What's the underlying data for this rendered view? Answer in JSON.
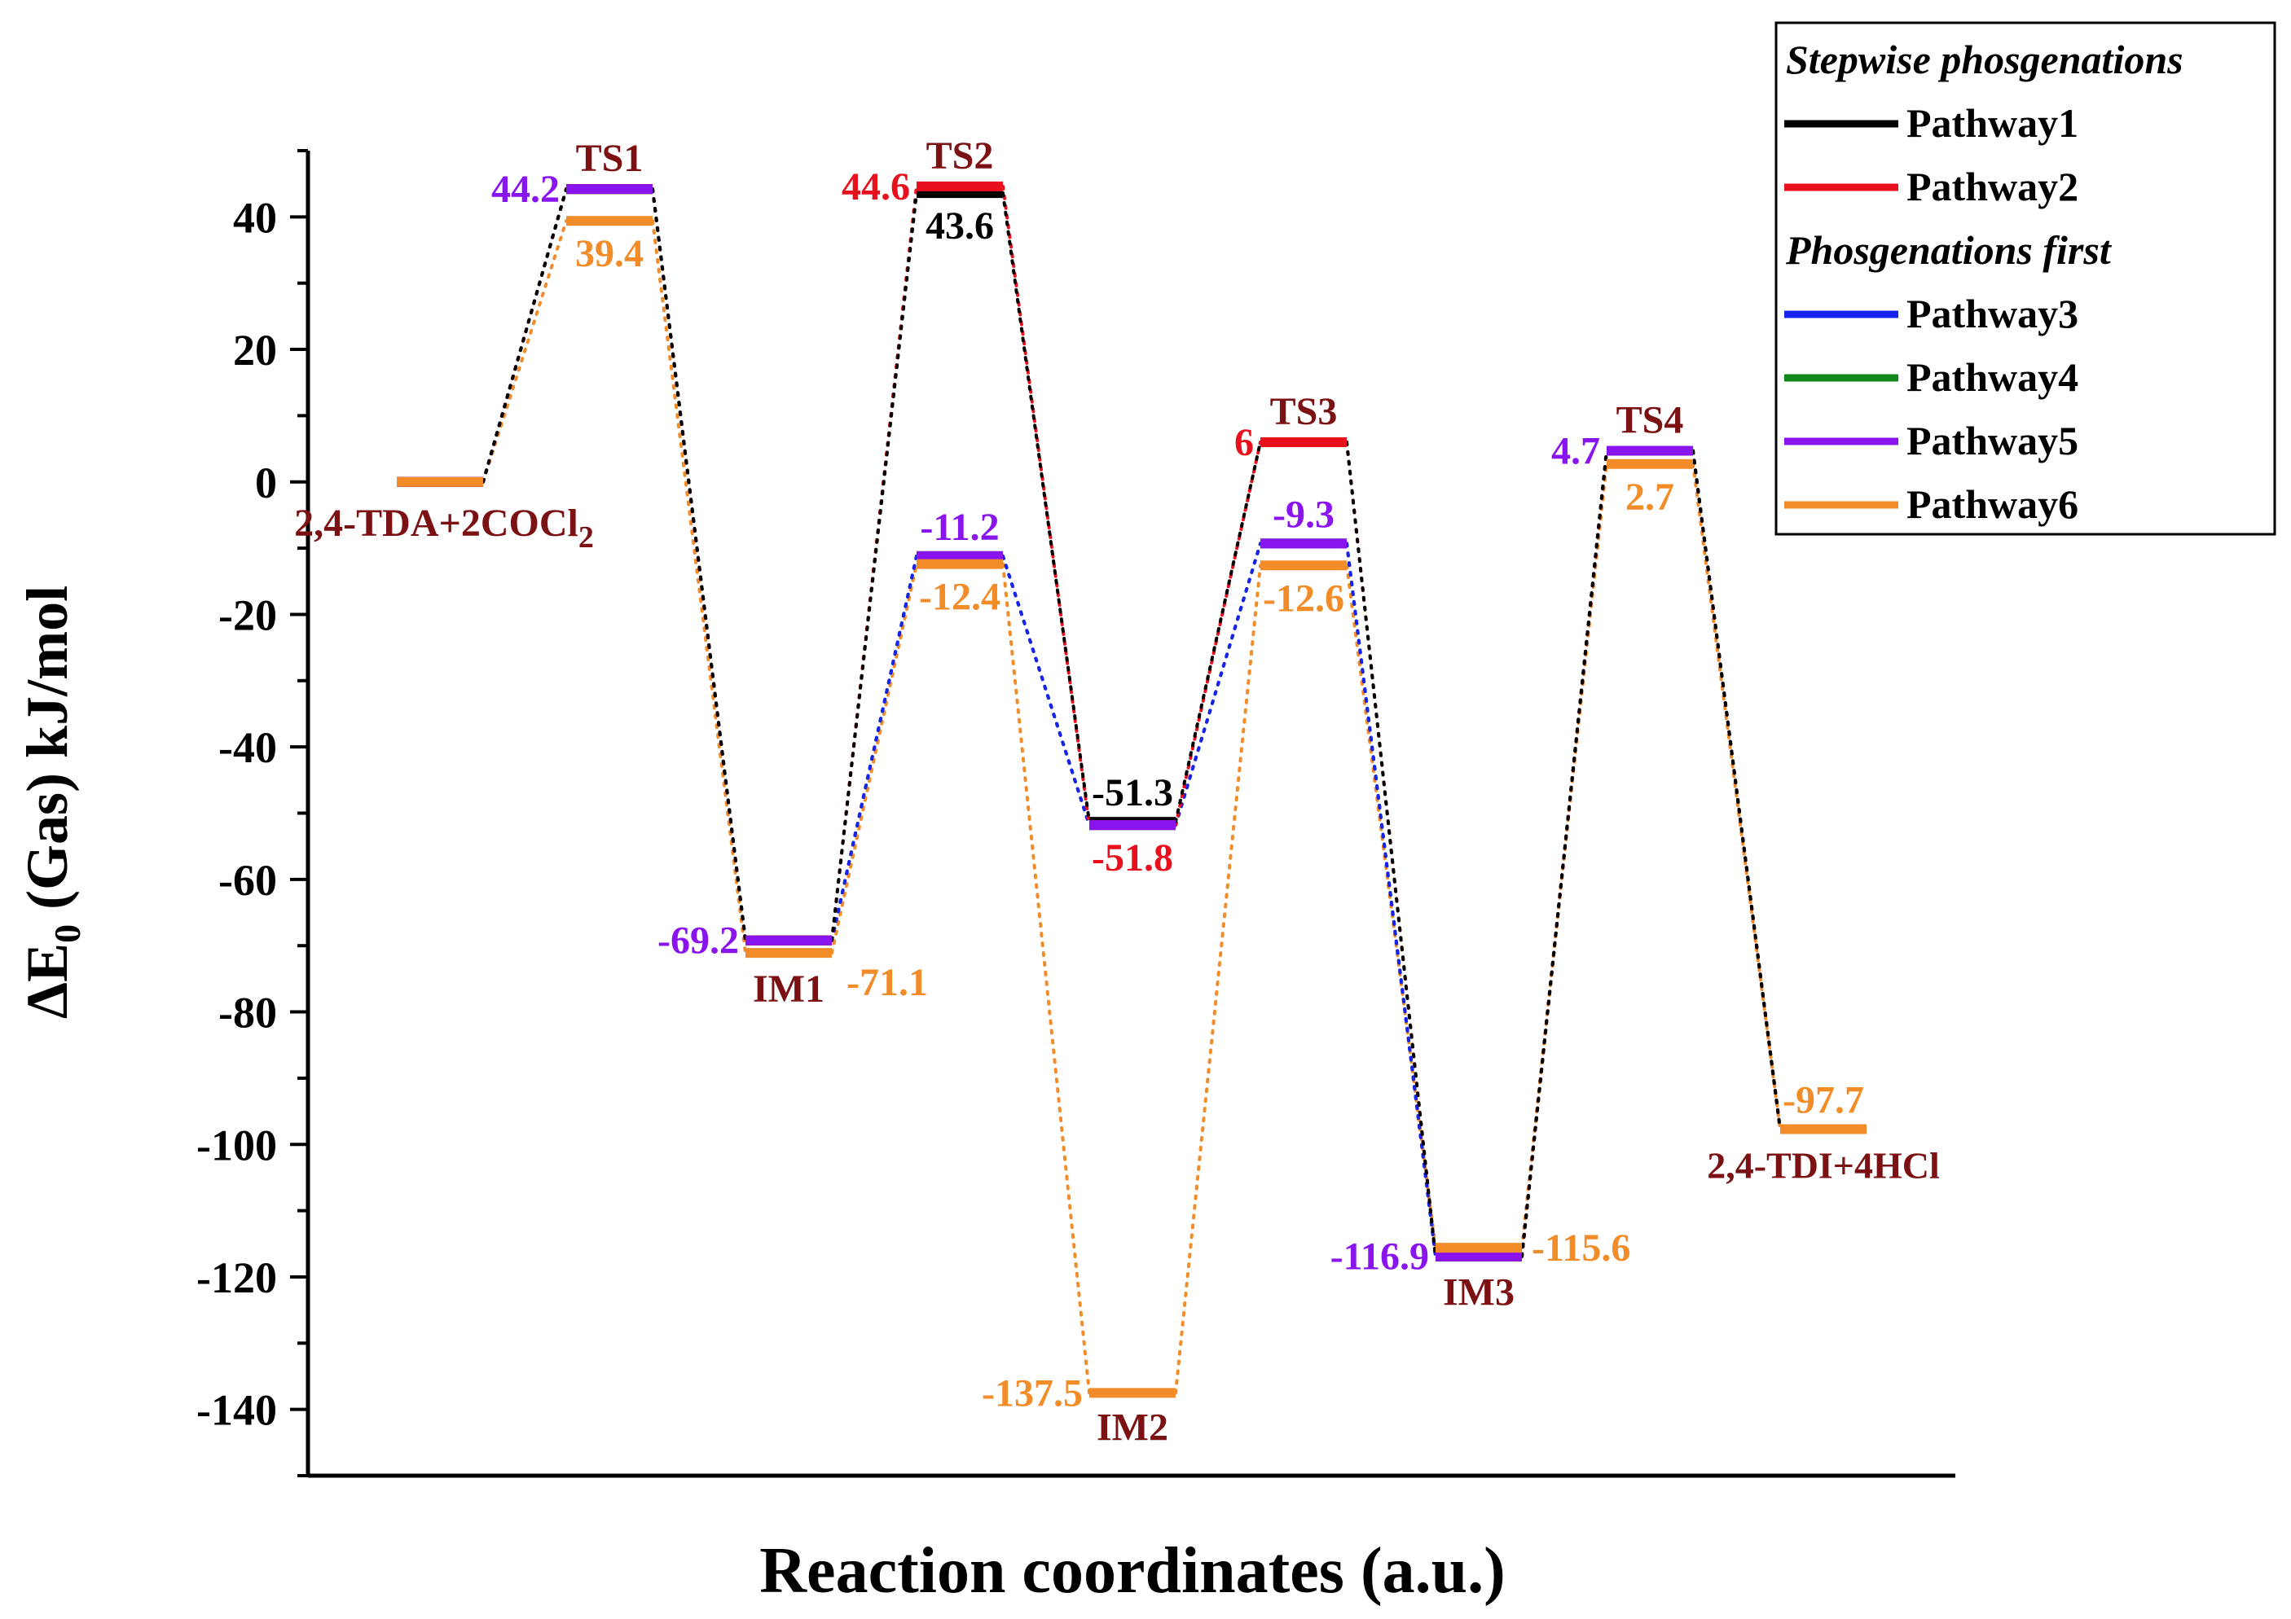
{
  "chart_data": {
    "type": "energy-profile",
    "xlabel": "Reaction coordinates (a.u.)",
    "ylabel_parts": {
      "delta": "ΔE",
      "sub": "0",
      "rest": " (Gas) kJ/mol"
    },
    "ylim": [
      -150,
      50
    ],
    "yticks": [
      40,
      20,
      0,
      -20,
      -40,
      -60,
      -80,
      -100,
      -120,
      -140
    ],
    "stages": [
      "2,4-TDA+2COCl2",
      "TS1",
      "IM1",
      "TS2",
      "IM2",
      "TS3",
      "IM3",
      "TS4",
      "2,4-TDI+4HCl"
    ],
    "stage_labels": {
      "reactant": {
        "text": "2,4-TDA+2COCl",
        "sub": "2"
      },
      "TS1": "TS1",
      "IM1": "IM1",
      "TS2": "TS2",
      "IM2": "IM2",
      "TS3": "TS3",
      "IM3": "IM3",
      "TS4": "TS4",
      "product": "2,4-TDI+4HCl"
    },
    "series": [
      {
        "name": "Pathway1",
        "color": "#000000",
        "values": [
          0,
          44.2,
          -69.2,
          43.6,
          -51.3,
          6,
          -116.9,
          4.7,
          -97.7
        ]
      },
      {
        "name": "Pathway2",
        "color": "#e8101c",
        "values": [
          0,
          44.2,
          -69.2,
          44.6,
          -51.8,
          6,
          -116.9,
          4.7,
          -97.7
        ]
      },
      {
        "name": "Pathway3",
        "color": "#1622ee",
        "values": [
          0,
          44.2,
          -69.2,
          -11.2,
          -51.8,
          -9.3,
          -116.9,
          4.7,
          -97.7
        ]
      },
      {
        "name": "Pathway4",
        "color": "#138a1b",
        "values": [
          0,
          44.2,
          -69.2,
          -11.2,
          -51.8,
          -9.3,
          -116.9,
          4.7,
          -97.7
        ]
      },
      {
        "name": "Pathway5",
        "color": "#8a14ee",
        "values": [
          0,
          44.2,
          -69.2,
          -11.2,
          -51.8,
          -9.3,
          -116.9,
          4.7,
          -97.7
        ]
      },
      {
        "name": "Pathway6",
        "color": "#f28c28",
        "values": [
          0,
          39.4,
          -71.1,
          -12.4,
          -137.5,
          -12.6,
          -115.6,
          2.7,
          -97.7
        ]
      }
    ],
    "data_labels": [
      {
        "text": "44.2",
        "stage": 1,
        "value": 44.2,
        "color": "#8a14ee",
        "side": "left"
      },
      {
        "text": "39.4",
        "stage": 1,
        "value": 39.4,
        "color": "#f28c28",
        "side": "below"
      },
      {
        "text": "-69.2",
        "stage": 2,
        "value": -69.2,
        "color": "#8a14ee",
        "side": "left"
      },
      {
        "text": "-71.1",
        "stage": 2,
        "value": -71.1,
        "color": "#f28c28",
        "side": "right-below"
      },
      {
        "text": "44.6",
        "stage": 3,
        "value": 44.6,
        "color": "#e8101c",
        "side": "left"
      },
      {
        "text": "43.6",
        "stage": 3,
        "value": 43.6,
        "color": "#000000",
        "side": "below"
      },
      {
        "text": "-11.2",
        "stage": 3,
        "value": -11.2,
        "color": "#8a14ee",
        "side": "above"
      },
      {
        "text": "-12.4",
        "stage": 3,
        "value": -12.4,
        "color": "#f28c28",
        "side": "below"
      },
      {
        "text": "-51.3",
        "stage": 4,
        "value": -51.3,
        "color": "#000000",
        "side": "above"
      },
      {
        "text": "-51.8",
        "stage": 4,
        "value": -51.8,
        "color": "#e8101c",
        "side": "below"
      },
      {
        "text": "-137.5",
        "stage": 4,
        "value": -137.5,
        "color": "#f28c28",
        "side": "left"
      },
      {
        "text": "6",
        "stage": 5,
        "value": 6,
        "color": "#e8101c",
        "side": "left"
      },
      {
        "text": "-9.3",
        "stage": 5,
        "value": -9.3,
        "color": "#8a14ee",
        "side": "above"
      },
      {
        "text": "-12.6",
        "stage": 5,
        "value": -12.6,
        "color": "#f28c28",
        "side": "below"
      },
      {
        "text": "-116.9",
        "stage": 6,
        "value": -116.9,
        "color": "#8a14ee",
        "side": "left"
      },
      {
        "text": "-115.6",
        "stage": 6,
        "value": -115.6,
        "color": "#f28c28",
        "side": "right"
      },
      {
        "text": "4.7",
        "stage": 7,
        "value": 4.7,
        "color": "#8a14ee",
        "side": "left"
      },
      {
        "text": "2.7",
        "stage": 7,
        "value": 2.7,
        "color": "#f28c28",
        "side": "below"
      },
      {
        "text": "-97.7",
        "stage": 8,
        "value": -97.7,
        "color": "#f28c28",
        "side": "above"
      }
    ],
    "legend": {
      "placement": "top-right",
      "groups": [
        {
          "title": "Stepwise phosgenations",
          "entries": [
            "Pathway1",
            "Pathway2"
          ]
        },
        {
          "title": "Phosgenations first",
          "entries": [
            "Pathway3",
            "Pathway4",
            "Pathway5",
            "Pathway6"
          ]
        }
      ]
    },
    "stage_label_color": "#7b1113"
  }
}
